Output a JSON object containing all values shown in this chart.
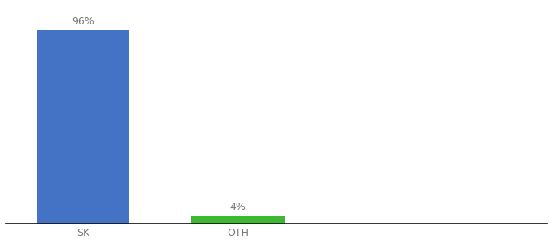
{
  "categories": [
    "SK",
    "OTH"
  ],
  "values": [
    96,
    4
  ],
  "bar_colors": [
    "#4472c4",
    "#3cb832"
  ],
  "labels": [
    "96%",
    "4%"
  ],
  "background_color": "#ffffff",
  "tick_color": "#777777",
  "label_fontsize": 9,
  "tick_fontsize": 9,
  "ylim": [
    0,
    108
  ],
  "figsize": [
    6.8,
    3.0
  ],
  "dpi": 100,
  "x_positions": [
    1,
    3
  ],
  "bar_width": 1.2,
  "xlim": [
    0,
    7
  ]
}
